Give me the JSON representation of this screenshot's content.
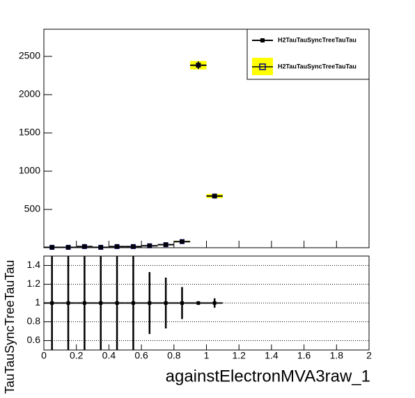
{
  "chart_data": [
    {
      "type": "errorbar",
      "x": [
        0.05,
        0.15,
        0.25,
        0.35,
        0.45,
        0.55,
        0.65,
        0.75,
        0.85,
        0.95,
        1.05
      ],
      "series": [
        {
          "name": "H2TauTauSyncTreeTauTau",
          "color": "#000000",
          "values": [
            5,
            5,
            15,
            5,
            15,
            15,
            25,
            40,
            80,
            2385,
            675
          ],
          "errors": [
            2,
            2,
            4,
            2,
            4,
            4,
            5,
            6,
            9,
            49,
            26
          ]
        },
        {
          "name": "H2TauTauSyncTreeTauTau",
          "color": "#000080",
          "fill": "#ffff00",
          "values": [
            5,
            5,
            15,
            5,
            15,
            15,
            25,
            40,
            80,
            2385,
            675
          ],
          "errors": [
            2,
            2,
            4,
            2,
            4,
            4,
            5,
            6,
            9,
            55,
            27
          ]
        }
      ],
      "xlim": [
        0,
        2
      ],
      "xticks": [
        0,
        0.2,
        0.4,
        0.6,
        0.8,
        1,
        1.2,
        1.4,
        1.6,
        1.8,
        2
      ],
      "ylim": [
        0,
        2855
      ],
      "yticks": [
        500,
        1000,
        1500,
        2000,
        2500
      ],
      "legend": "top-right"
    },
    {
      "type": "ratio",
      "x": [
        0.05,
        0.15,
        0.25,
        0.35,
        0.45,
        0.55,
        0.65,
        0.75,
        0.85,
        0.95,
        1.05
      ],
      "values": [
        1,
        1,
        1,
        1,
        1,
        1,
        1,
        1,
        1,
        1,
        1
      ],
      "errors": [
        0.6,
        0.6,
        0.6,
        0.6,
        0.6,
        0.6,
        0.33,
        0.27,
        0.17,
        0.02,
        0.05
      ],
      "xlim": [
        0,
        2
      ],
      "xticks": [
        0,
        0.2,
        0.4,
        0.6,
        0.8,
        1,
        1.2,
        1.4,
        1.6,
        1.8,
        2
      ],
      "ylim": [
        0.5,
        1.5
      ],
      "yticks": [
        0.6,
        0.8,
        1,
        1.2,
        1.4
      ],
      "grid": true,
      "xlabel": "againstElectronMVA3raw_1",
      "ylabel": "TauTauSyncTreeTauTau"
    }
  ]
}
